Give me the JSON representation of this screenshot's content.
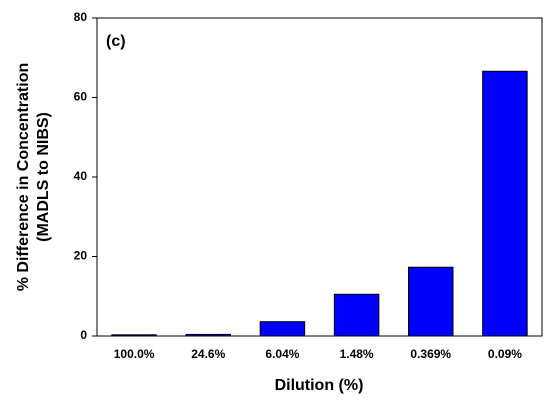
{
  "chart_data": {
    "type": "bar",
    "annotation": "(c)",
    "xlabel": "Dilution (%)",
    "ylabel": [
      "% Difference in Concentration",
      "(MADLS to NIBS)"
    ],
    "categories": [
      "100.0%",
      "24.6%",
      "6.04%",
      "1.48%",
      "0.369%",
      "0.09%"
    ],
    "values": [
      0.3,
      0.4,
      3.6,
      10.5,
      17.3,
      66.6
    ],
    "color": "#0000ff",
    "ylim": [
      0,
      80
    ],
    "yticks": [
      0,
      20,
      40,
      60,
      80
    ],
    "grid": false
  }
}
